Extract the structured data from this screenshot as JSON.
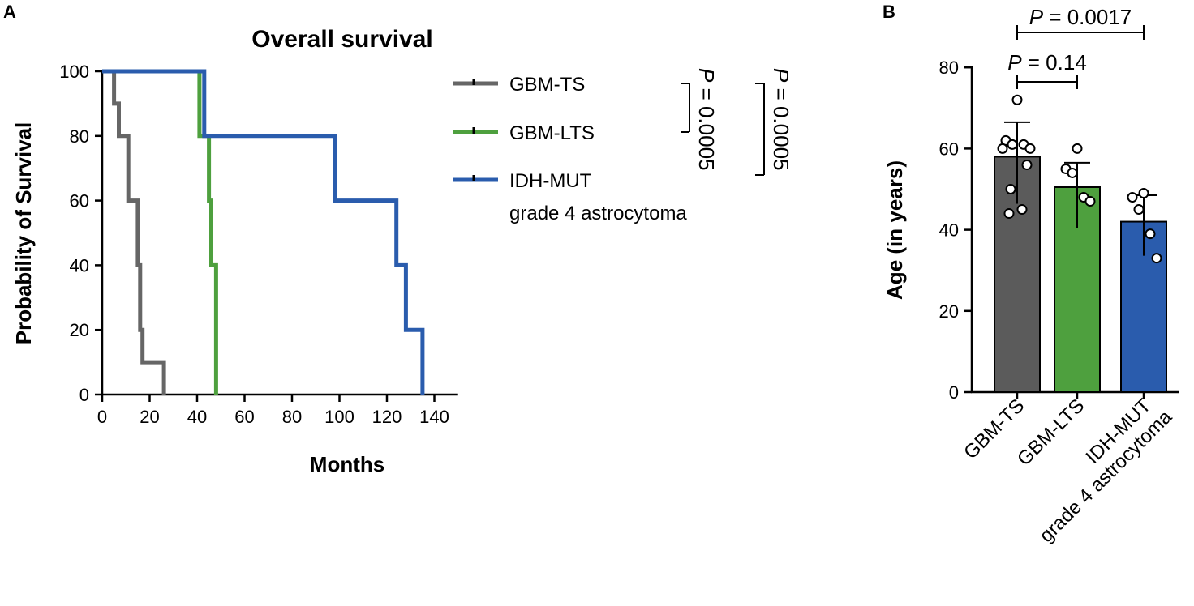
{
  "chart_data": [
    {
      "panel": "A",
      "type": "line",
      "subtype": "kaplan-meier",
      "title": "Overall survival",
      "xlabel": "Months",
      "ylabel": "Probability of Survival",
      "xlim": [
        0,
        150
      ],
      "ylim": [
        0,
        100
      ],
      "xticks": [
        0,
        20,
        40,
        60,
        80,
        100,
        120,
        140
      ],
      "yticks": [
        0,
        20,
        40,
        60,
        80,
        100
      ],
      "series": [
        {
          "name": "GBM-TS",
          "color": "#666666",
          "steps": [
            [
              0,
              100
            ],
            [
              5,
              100
            ],
            [
              5,
              90
            ],
            [
              7,
              90
            ],
            [
              7,
              80
            ],
            [
              11,
              80
            ],
            [
              11,
              60
            ],
            [
              15,
              60
            ],
            [
              15,
              40
            ],
            [
              16,
              40
            ],
            [
              16,
              20
            ],
            [
              17,
              20
            ],
            [
              17,
              10
            ],
            [
              26,
              10
            ],
            [
              26,
              0
            ]
          ]
        },
        {
          "name": "GBM-LTS",
          "color": "#4ea03e",
          "steps": [
            [
              0,
              100
            ],
            [
              41,
              100
            ],
            [
              41,
              80
            ],
            [
              45,
              80
            ],
            [
              45,
              60
            ],
            [
              46,
              60
            ],
            [
              46,
              40
            ],
            [
              48,
              40
            ],
            [
              48,
              0
            ]
          ]
        },
        {
          "name": "IDH-MUT",
          "name_line2": "grade 4 astrocytoma",
          "color": "#2a5cad",
          "steps": [
            [
              0,
              100
            ],
            [
              43,
              100
            ],
            [
              43,
              80
            ],
            [
              98,
              80
            ],
            [
              98,
              60
            ],
            [
              124,
              60
            ],
            [
              124,
              40
            ],
            [
              128,
              40
            ],
            [
              128,
              20
            ],
            [
              135,
              20
            ],
            [
              135,
              0
            ]
          ]
        }
      ],
      "annotations": [
        {
          "text_p": "P",
          "text_rest": " = 0.0005",
          "between": "GBM-TS vs GBM-LTS"
        },
        {
          "text_p": "P",
          "text_rest": " = 0.0005",
          "between": "GBM-TS vs IDH-MUT"
        }
      ]
    },
    {
      "panel": "B",
      "type": "bar",
      "xlabel": "",
      "ylabel": "Age (in years)",
      "ylim": [
        0,
        80
      ],
      "yticks": [
        0,
        20,
        40,
        60,
        80
      ],
      "categories": [
        "GBM-TS",
        "GBM-LTS",
        "IDH-MUT grade 4 astrocytoma"
      ],
      "category_lines": [
        [
          "GBM-TS"
        ],
        [
          "GBM-LTS"
        ],
        [
          "IDH-MUT",
          "grade 4 astrocytoma"
        ]
      ],
      "values": [
        58,
        50.5,
        42
      ],
      "errors": [
        8.5,
        6,
        6.5
      ],
      "colors": [
        "#5b5b5b",
        "#4ea03e",
        "#2a5cad"
      ],
      "points": [
        [
          72,
          62,
          61,
          61,
          60,
          60,
          56,
          50,
          45,
          44
        ],
        [
          60,
          55,
          54,
          48,
          47
        ],
        [
          49,
          48,
          45,
          39,
          33
        ]
      ],
      "comparisons": [
        {
          "groups": [
            0,
            1
          ],
          "text_p": "P",
          "text_rest": " = 0.14"
        },
        {
          "groups": [
            0,
            2
          ],
          "text_p": "P",
          "text_rest": " = 0.0017"
        }
      ]
    }
  ],
  "panels": {
    "a_label": "A",
    "b_label": "B"
  }
}
